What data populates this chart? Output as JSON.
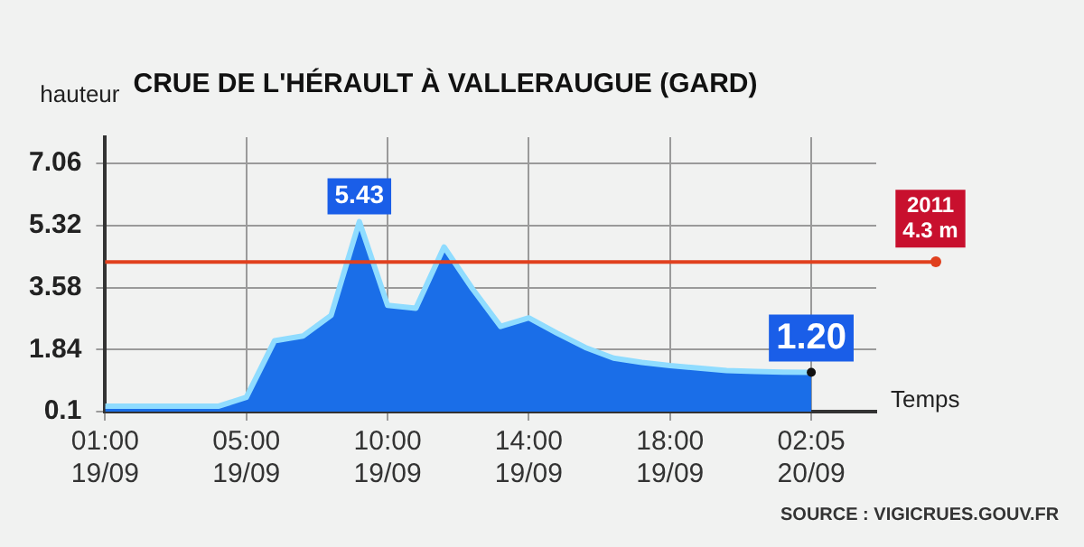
{
  "chart_data": {
    "type": "area",
    "title": "CRUE DE L'HÉRAULT À VALLERAUGUE (GARD)",
    "xlabel": "Temps",
    "ylabel": "hauteur",
    "categories": [
      "01:00\n19/09",
      null,
      null,
      null,
      null,
      "05:00\n19/09",
      null,
      null,
      null,
      null,
      "10:00\n19/09",
      null,
      null,
      null,
      null,
      "14:00\n19/09",
      null,
      null,
      null,
      null,
      "18:00\n19/09",
      null,
      null,
      null,
      null,
      "02:05\n20/09"
    ],
    "series": [
      {
        "color": "#1a6ee8",
        "values": [
          0.25,
          0.25,
          0.25,
          0.25,
          0.25,
          0.5,
          2.09,
          2.22,
          2.8,
          5.43,
          3.08,
          3.0,
          4.72,
          3.55,
          2.49,
          2.73,
          2.3,
          1.9,
          1.6,
          1.48,
          1.39,
          1.32,
          1.25,
          1.23,
          1.21,
          1.2
        ]
      }
    ],
    "ylim": [
      0.1,
      7.8
    ],
    "yticks": [
      0.1,
      1.84,
      3.58,
      5.32,
      7.06
    ],
    "grid": true,
    "ref_lines": [
      {
        "axis": "y",
        "value": 4.3,
        "label": "2011\n4.3 m",
        "color": "#e0401e"
      }
    ],
    "annotations": [
      {
        "text": "5.43",
        "y": 5.43
      },
      {
        "text": "1.20",
        "x": "02:05\n20/09",
        "y": 1.2
      },
      "SOURCE : VIGICRUES.GOUV.FR"
    ]
  }
}
